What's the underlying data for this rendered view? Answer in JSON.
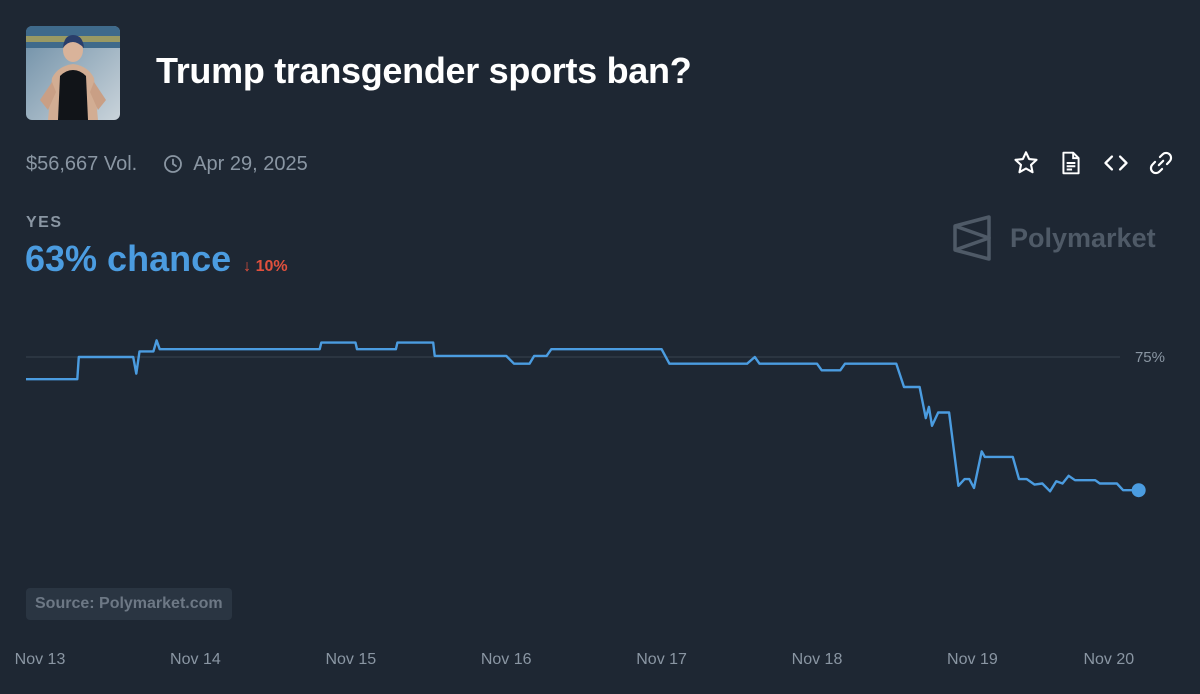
{
  "header": {
    "title": "Trump transgender sports ban?",
    "volume": "$56,667 Vol.",
    "end_date": "Apr 29, 2025",
    "thumbnail_icon": "swimmer-photo"
  },
  "actions": [
    {
      "icon": "star-icon"
    },
    {
      "icon": "document-icon"
    },
    {
      "icon": "code-icon"
    },
    {
      "icon": "link-icon"
    }
  ],
  "summary": {
    "outcome": "YES",
    "chance": "63% chance",
    "change": "↓ 10%"
  },
  "brand": {
    "name": "Polymarket"
  },
  "source_label": "Source: Polymarket.com",
  "colors": {
    "background": "#1e2733",
    "line": "#4b9ce0",
    "down": "#e0503d",
    "muted": "#8a96a3"
  },
  "chart_data": {
    "type": "line",
    "xlabel": "",
    "ylabel": "",
    "x_ticks": [
      "Nov 13",
      "Nov 14",
      "Nov 15",
      "Nov 16",
      "Nov 17",
      "Nov 18",
      "Nov 19",
      "Nov 20"
    ],
    "y_ticks": [
      "75%"
    ],
    "y_unit": "%",
    "grid": "horizontal at 75%",
    "series": [
      {
        "points": [
          [
            0.0,
            73
          ],
          [
            0.24,
            73
          ],
          [
            0.25,
            75
          ],
          [
            0.6,
            75
          ],
          [
            0.62,
            73.5
          ],
          [
            0.64,
            75.5
          ],
          [
            0.73,
            75.5
          ],
          [
            0.75,
            76.5
          ],
          [
            0.77,
            75.7
          ],
          [
            1.8,
            75.7
          ],
          [
            1.81,
            76.3
          ],
          [
            2.03,
            76.3
          ],
          [
            2.04,
            75.7
          ],
          [
            2.29,
            75.7
          ],
          [
            2.3,
            76.3
          ],
          [
            2.53,
            76.3
          ],
          [
            2.54,
            75.1
          ],
          [
            3.0,
            75.1
          ],
          [
            3.05,
            74.4
          ],
          [
            3.15,
            74.4
          ],
          [
            3.18,
            75.1
          ],
          [
            3.26,
            75.1
          ],
          [
            3.29,
            75.7
          ],
          [
            4.0,
            75.7
          ],
          [
            4.05,
            74.4
          ],
          [
            4.55,
            74.4
          ],
          [
            4.6,
            75.0
          ],
          [
            4.63,
            74.4
          ],
          [
            5.0,
            74.4
          ],
          [
            5.03,
            73.8
          ],
          [
            5.15,
            73.8
          ],
          [
            5.18,
            74.4
          ],
          [
            5.51,
            74.4
          ],
          [
            5.56,
            72.3
          ],
          [
            5.66,
            72.3
          ],
          [
            5.7,
            69.5
          ],
          [
            5.72,
            70.5
          ],
          [
            5.74,
            68.8
          ],
          [
            5.78,
            70.0
          ],
          [
            5.85,
            70.0
          ],
          [
            5.91,
            63.4
          ],
          [
            5.95,
            64.0
          ],
          [
            5.98,
            64.0
          ],
          [
            6.01,
            63.2
          ],
          [
            6.06,
            66.5
          ],
          [
            6.08,
            66.0
          ],
          [
            6.26,
            66.0
          ],
          [
            6.3,
            64.0
          ],
          [
            6.35,
            64.0
          ],
          [
            6.4,
            63.5
          ],
          [
            6.45,
            63.6
          ],
          [
            6.5,
            62.9
          ],
          [
            6.54,
            63.8
          ],
          [
            6.58,
            63.6
          ],
          [
            6.62,
            64.3
          ],
          [
            6.66,
            63.9
          ],
          [
            6.79,
            63.9
          ],
          [
            6.82,
            63.6
          ],
          [
            6.93,
            63.6
          ],
          [
            6.97,
            63.0
          ],
          [
            7.07,
            63.0
          ]
        ]
      }
    ]
  }
}
